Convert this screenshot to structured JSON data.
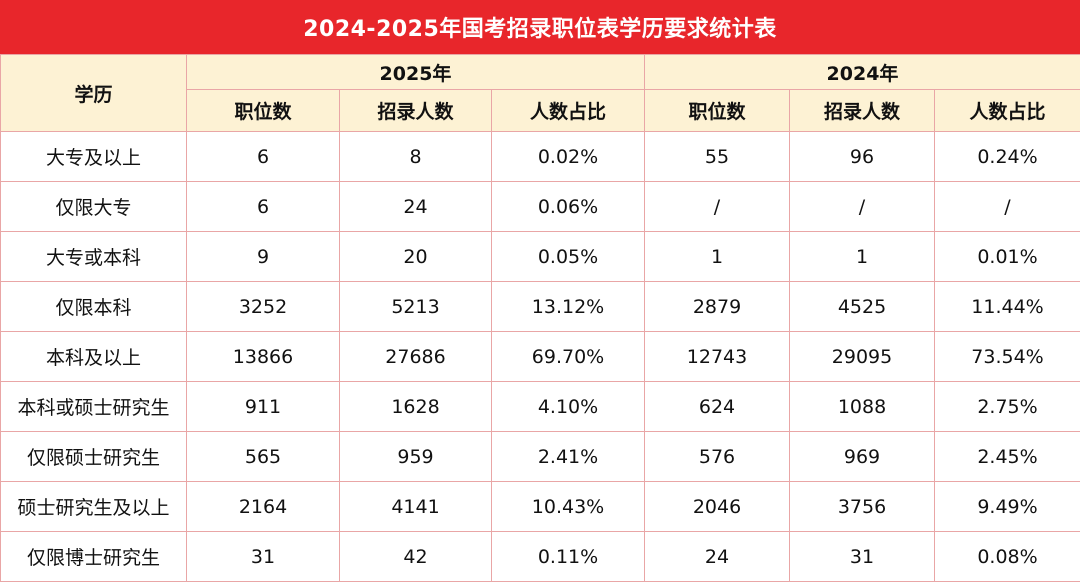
{
  "title": "2024-2025年国考招录职位表学历要求统计表",
  "header": {
    "education_label": "学历",
    "groups": [
      "2025年",
      "2024年"
    ],
    "subcolumns": [
      "职位数",
      "招录人数",
      "人数占比"
    ]
  },
  "rows": [
    {
      "label": "大专及以上",
      "y2025": [
        "6",
        "8",
        "0.02%"
      ],
      "y2024": [
        "55",
        "96",
        "0.24%"
      ]
    },
    {
      "label": "仅限大专",
      "y2025": [
        "6",
        "24",
        "0.06%"
      ],
      "y2024": [
        "/",
        "/",
        "/"
      ]
    },
    {
      "label": "大专或本科",
      "y2025": [
        "9",
        "20",
        "0.05%"
      ],
      "y2024": [
        "1",
        "1",
        "0.01%"
      ]
    },
    {
      "label": "仅限本科",
      "y2025": [
        "3252",
        "5213",
        "13.12%"
      ],
      "y2024": [
        "2879",
        "4525",
        "11.44%"
      ]
    },
    {
      "label": "本科及以上",
      "y2025": [
        "13866",
        "27686",
        "69.70%"
      ],
      "y2024": [
        "12743",
        "29095",
        "73.54%"
      ]
    },
    {
      "label": "本科或硕士研究生",
      "y2025": [
        "911",
        "1628",
        "4.10%"
      ],
      "y2024": [
        "624",
        "1088",
        "2.75%"
      ]
    },
    {
      "label": "仅限硕士研究生",
      "y2025": [
        "565",
        "959",
        "2.41%"
      ],
      "y2024": [
        "576",
        "969",
        "2.45%"
      ]
    },
    {
      "label": "硕士研究生及以上",
      "y2025": [
        "2164",
        "4141",
        "10.43%"
      ],
      "y2024": [
        "2046",
        "3756",
        "9.49%"
      ]
    },
    {
      "label": "仅限博士研究生",
      "y2025": [
        "31",
        "42",
        "0.11%"
      ],
      "y2024": [
        "24",
        "31",
        "0.08%"
      ]
    }
  ],
  "colors": {
    "title_bg": "#e8262b",
    "header_bg": "#fdf2d4",
    "border": "#e9a6a6"
  }
}
